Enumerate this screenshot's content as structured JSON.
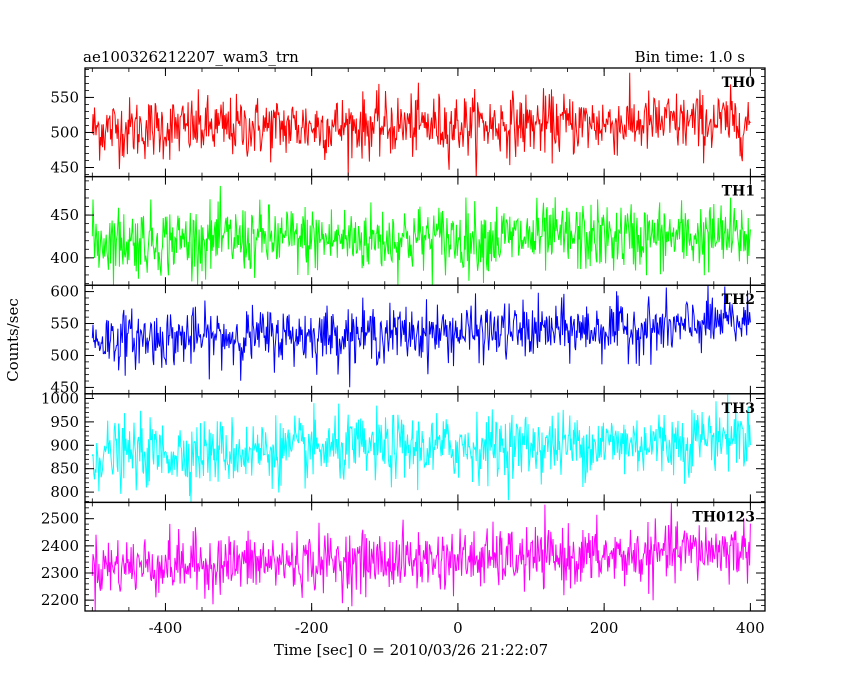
{
  "chart_data": {
    "type": "line",
    "title": "ae100326212207_wam3_trn",
    "bin_label": "Bin time: 1.0 s",
    "xlabel": "Time [sec] 0 = 2010/03/26 21:22:07",
    "ylabel": "Counts/sec",
    "xlim": [
      -510,
      420
    ],
    "x_ticks": [
      -400,
      -200,
      0,
      200,
      400
    ],
    "x_start": -500,
    "x_end": 400,
    "x_step": 1,
    "panels": [
      {
        "name": "TH0",
        "color": "#ff0000",
        "ylim": [
          437,
          592
        ],
        "yticks": [
          450,
          500,
          550
        ],
        "mean_start": 505,
        "mean_end": 515,
        "noise": 22,
        "bump_at": null
      },
      {
        "name": "TH1",
        "color": "#00ff00",
        "ylim": [
          368,
          495
        ],
        "yticks": [
          400,
          450
        ],
        "mean_start": 420,
        "mean_end": 425,
        "noise": 20,
        "bump_at": null
      },
      {
        "name": "TH2",
        "color": "#0000ff",
        "ylim": [
          440,
          610
        ],
        "yticks": [
          450,
          500,
          550,
          600
        ],
        "mean_start": 525,
        "mean_end": 545,
        "noise": 22,
        "bump_at": 320
      },
      {
        "name": "TH3",
        "color": "#00ffff",
        "ylim": [
          778,
          1010
        ],
        "yticks": [
          800,
          850,
          900,
          950,
          1000
        ],
        "mean_start": 880,
        "mean_end": 910,
        "noise": 35,
        "bump_at": 320
      },
      {
        "name": "TH0123",
        "color": "#ff00ff",
        "ylim": [
          2160,
          2560
        ],
        "yticks": [
          2200,
          2300,
          2400,
          2500
        ],
        "mean_start": 2325,
        "mean_end": 2370,
        "noise": 55,
        "bump_at": 280
      }
    ]
  }
}
